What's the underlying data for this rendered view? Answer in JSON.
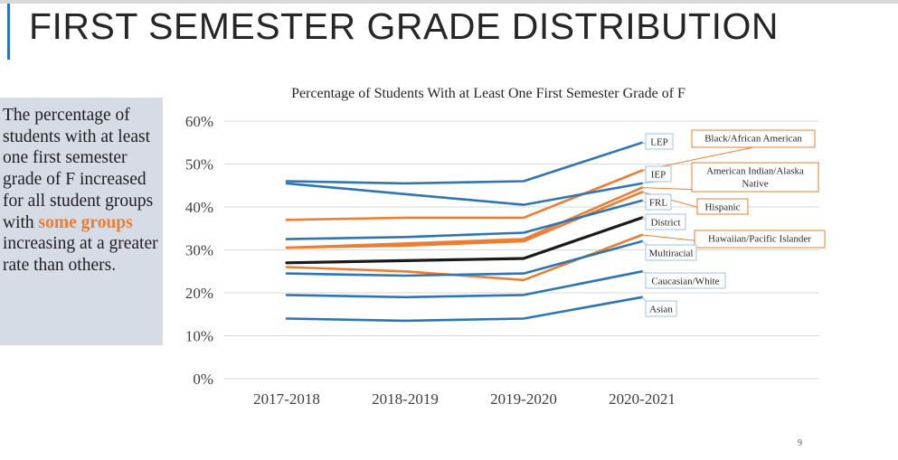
{
  "slide": {
    "title": "FIRST SEMESTER GRADE DISTRIBUTION",
    "page_number": "9",
    "sidebar": {
      "text_before": "The percentage of students with at least one first semester grade of F increased for all student groups with ",
      "highlight": "some groups",
      "text_after": " increasing at a greater rate than others."
    }
  },
  "colors": {
    "accent": "#ed7d31",
    "blue": "#2e75b6",
    "district": "#1a1a1a",
    "sidebar_bg": "#d6dce5"
  },
  "chart_data": {
    "type": "line",
    "title": "Percentage of Students With at Least One First Semester Grade of F",
    "xlabel": "",
    "ylabel": "",
    "categories": [
      "2017-2018",
      "2018-2019",
      "2019-2020",
      "2020-2021"
    ],
    "ylim": [
      0,
      60
    ],
    "yticks": [
      "0%",
      "10%",
      "20%",
      "30%",
      "40%",
      "50%",
      "60%"
    ],
    "grid": true,
    "legend": "none",
    "series": [
      {
        "name": "LEP",
        "color": "#2e75b6",
        "values": [
          46,
          45.5,
          46,
          55
        ]
      },
      {
        "name": "Black/African American",
        "color": "#ed7d31",
        "values": [
          37,
          37.5,
          37.5,
          48.5
        ]
      },
      {
        "name": "IEP",
        "color": "#2e75b6",
        "values": [
          45.5,
          43,
          40.5,
          45.5
        ]
      },
      {
        "name": "American Indian/Alaska Native",
        "color": "#ed7d31",
        "values": [
          30.5,
          31.5,
          32.5,
          44.5
        ]
      },
      {
        "name": "Hispanic",
        "color": "#ed7d31",
        "values": [
          30.5,
          31,
          32,
          43.5
        ]
      },
      {
        "name": "FRL",
        "color": "#2e75b6",
        "values": [
          32.5,
          33,
          34,
          41.5
        ]
      },
      {
        "name": "District",
        "color": "#1a1a1a",
        "values": [
          27,
          27.5,
          28,
          37.5
        ]
      },
      {
        "name": "Hawaiian/Pacific Islander",
        "color": "#ed7d31",
        "values": [
          26,
          25,
          23,
          33.5
        ]
      },
      {
        "name": "Multiracial",
        "color": "#2e75b6",
        "values": [
          24.5,
          24,
          24.5,
          32
        ]
      },
      {
        "name": "Caucasian/White",
        "color": "#2e75b6",
        "values": [
          19.5,
          19,
          19.5,
          25
        ]
      },
      {
        "name": "Asian",
        "color": "#2e75b6",
        "values": [
          14,
          13.5,
          14,
          19
        ]
      }
    ]
  }
}
